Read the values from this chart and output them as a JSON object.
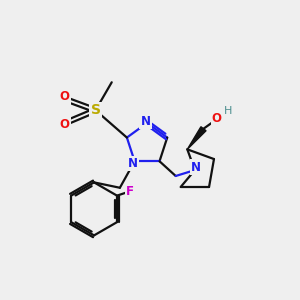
{
  "bg_color": "#efefef",
  "bond_color": "#111111",
  "N_color": "#2020ee",
  "O_color": "#ee1111",
  "S_color": "#bbaa00",
  "F_color": "#cc00cc",
  "H_color": "#4f9090",
  "line_width": 1.6,
  "font_size": 8.5,
  "fig_size": [
    3.0,
    3.0
  ],
  "dpi": 100,
  "xlim": [
    0,
    10
  ],
  "ylim": [
    0,
    10
  ]
}
